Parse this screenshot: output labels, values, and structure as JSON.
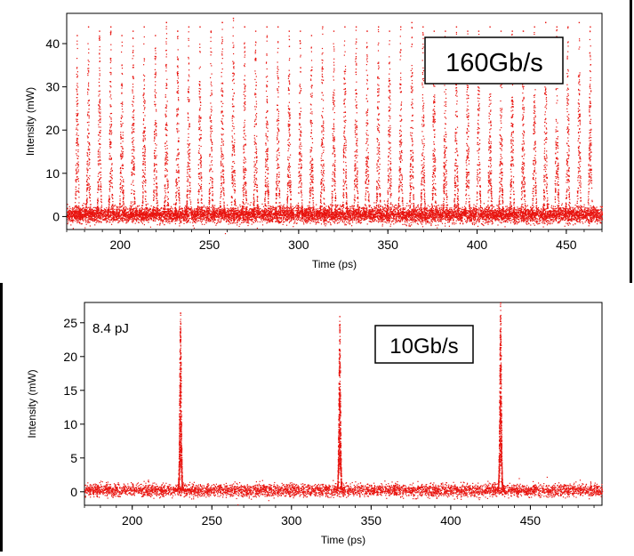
{
  "chart_data": [
    {
      "type": "scatter",
      "title": "",
      "xlabel": "Time (ps)",
      "ylabel": "Intensity (mW)",
      "xlim": [
        170,
        470
      ],
      "ylim": [
        -3,
        47
      ],
      "x_ticks": [
        200,
        250,
        300,
        350,
        400,
        450
      ],
      "y_ticks": [
        0,
        10,
        20,
        30,
        40
      ],
      "grid": false,
      "annotations": [
        {
          "text": "160Gb/s",
          "boxed": true,
          "position": "top-right"
        }
      ],
      "series": [
        {
          "color": "#e8140f",
          "description_of_shape": "periodic optical pulse train",
          "pulse_period_ps": 6.25,
          "pulse_fwhm_ps": 1.2,
          "baseline_mW": 0.5,
          "pulse_peaks_x": [
            175.6,
            181.9,
            188.1,
            194.4,
            200.6,
            206.9,
            213.1,
            219.4,
            225.6,
            231.9,
            238.1,
            244.4,
            250.6,
            256.9,
            263.1,
            269.4,
            275.6,
            281.9,
            288.1,
            294.4,
            300.6,
            306.9,
            313.1,
            319.4,
            325.6,
            331.9,
            338.1,
            344.4,
            350.6,
            356.9,
            363.1,
            369.4,
            375.6,
            381.9,
            388.1,
            394.4,
            400.6,
            406.9,
            413.1,
            419.4,
            425.6,
            431.9,
            438.1,
            444.4,
            450.6,
            456.9,
            463.1
          ],
          "pulse_peaks_y": [
            42,
            44,
            43,
            44,
            42,
            43,
            44,
            42,
            45,
            43,
            44,
            44,
            43,
            45,
            46,
            44,
            43,
            44,
            44,
            43,
            43,
            42,
            44,
            43,
            44,
            44,
            43,
            44,
            43,
            44,
            45,
            44,
            43,
            43,
            44,
            43,
            43,
            44,
            43,
            43,
            43,
            44,
            45,
            44,
            44,
            45,
            44
          ]
        }
      ]
    },
    {
      "type": "scatter",
      "title": "",
      "xlabel": "Time (ps)",
      "ylabel": "Intensity (mW)",
      "xlim": [
        170,
        495
      ],
      "ylim": [
        -2,
        28
      ],
      "x_ticks": [
        200,
        250,
        300,
        350,
        400,
        450
      ],
      "y_ticks": [
        0,
        5,
        10,
        15,
        20,
        25
      ],
      "grid": false,
      "annotations": [
        {
          "text": "8.4 pJ",
          "boxed": false,
          "position": "top-left"
        },
        {
          "text": "10Gb/s",
          "boxed": true,
          "position": "top-center-right"
        }
      ],
      "series": [
        {
          "color": "#e8140f",
          "description_of_shape": "isolated optical pulses",
          "pulse_period_ps": 100,
          "pulse_fwhm_ps": 1.2,
          "baseline_mW": 0.3,
          "pulse_peaks_x": [
            230,
            330,
            431
          ],
          "pulse_peaks_y": [
            26.5,
            26,
            28
          ]
        }
      ]
    }
  ]
}
